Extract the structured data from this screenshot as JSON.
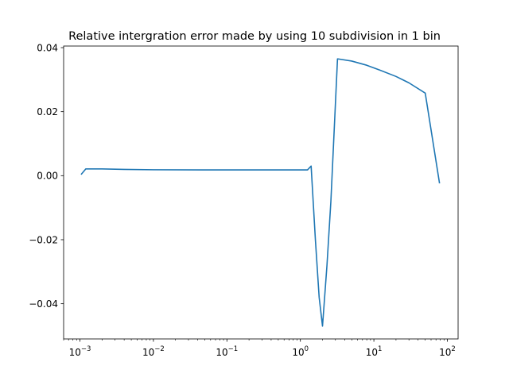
{
  "chart_data": {
    "type": "line",
    "title": "Relative intergration error made by using 10 subdivision in 1 bin",
    "xlabel": "",
    "ylabel": "",
    "xscale": "log",
    "xlim": [
      0.0006,
      140
    ],
    "ylim": [
      -0.051,
      0.0405
    ],
    "grid": false,
    "legend": "none",
    "x_ticks": [
      {
        "value": 0.001,
        "base": "10",
        "exp": "−3"
      },
      {
        "value": 0.01,
        "base": "10",
        "exp": "−2"
      },
      {
        "value": 0.1,
        "base": "10",
        "exp": "−1"
      },
      {
        "value": 1,
        "base": "10",
        "exp": "0"
      },
      {
        "value": 10,
        "base": "10",
        "exp": "1"
      },
      {
        "value": 100,
        "base": "10",
        "exp": "2"
      }
    ],
    "y_ticks": [
      {
        "value": 0.04,
        "label": "0.04"
      },
      {
        "value": 0.02,
        "label": "0.02"
      },
      {
        "value": 0.0,
        "label": "0.00"
      },
      {
        "value": -0.02,
        "label": "−0.02"
      },
      {
        "value": -0.04,
        "label": "−0.04"
      }
    ],
    "series": [
      {
        "color": "#1f77b4",
        "x": [
          0.00105,
          0.0012,
          0.002,
          0.004,
          0.01,
          0.05,
          0.2,
          1.0,
          1.25,
          1.4,
          1.6,
          1.8,
          2.0,
          2.3,
          2.6,
          3.2,
          5,
          8,
          12,
          20,
          30,
          50,
          78
        ],
        "y": [
          0.0005,
          0.0021,
          0.0021,
          0.00195,
          0.00185,
          0.0018,
          0.0018,
          0.0018,
          0.0018,
          0.003,
          -0.02,
          -0.038,
          -0.047,
          -0.028,
          -0.008,
          0.0365,
          0.0358,
          0.0345,
          0.033,
          0.031,
          0.029,
          0.0258,
          -0.0022
        ]
      }
    ]
  }
}
